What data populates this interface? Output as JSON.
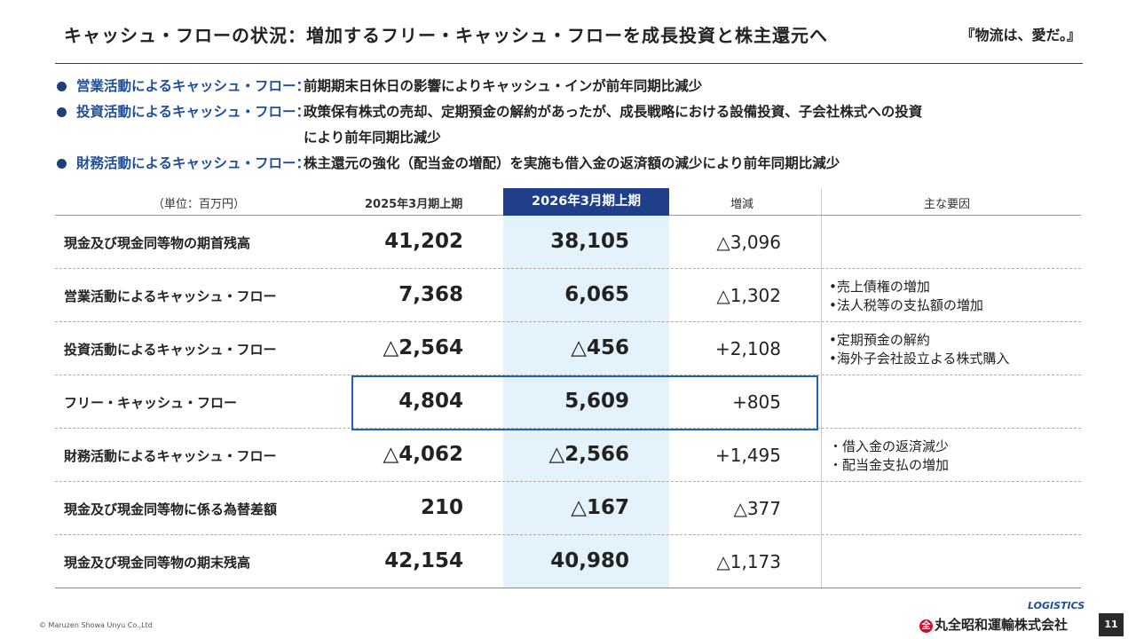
{
  "header": {
    "title": "キャッシュ・フローの状況：増加するフリー・キャッシュ・フローを成長投資と株主還元へ",
    "slogan": "『物流は、愛だ。』"
  },
  "bullets": [
    {
      "label": "営業活動によるキャッシュ・フロー：",
      "text": "前期期末日休日の影響によりキャッシュ・インが前年同期比減少",
      "text2": ""
    },
    {
      "label": "投資活動によるキャッシュ・フロー：",
      "text": "政策保有株式の売却、定期預金の解約があったが、成長戦略における設備投資、子会社株式への投資",
      "text2": "により前年同期比減少"
    },
    {
      "label": "財務活動によるキャッシュ・フロー：",
      "text": "株主還元の強化（配当金の増配）を実施も借入金の返済額の減少により前年同期比減少",
      "text2": ""
    }
  ],
  "table": {
    "headers": {
      "unit": "（単位：百万円）",
      "prev": "2025年3月期上期",
      "curr": "2026年3月期上期",
      "diff": "増減",
      "factors": "主な要因"
    },
    "rows": [
      {
        "name": "現金及び現金同等物の期首残高",
        "prev": "41,202",
        "curr": "38,105",
        "diff": "△3,096",
        "f1": "",
        "f2": ""
      },
      {
        "name": "営業活動によるキャッシュ・フロー",
        "prev": "7,368",
        "curr": "6,065",
        "diff": "△1,302",
        "f1": "•売上債権の増加",
        "f2": "•法人税等の支払額の増加"
      },
      {
        "name": "投資活動によるキャッシュ・フロー",
        "prev": "△2,564",
        "curr": "△456",
        "diff": "+2,108",
        "f1": "•定期預金の解約",
        "f2": "•海外子会社設立よる株式購入"
      },
      {
        "name": "フリー・キャッシュ・フロー",
        "prev": "4,804",
        "curr": "5,609",
        "diff": "+805",
        "f1": "",
        "f2": ""
      },
      {
        "name": "財務活動によるキャッシュ・フロー",
        "prev": "△4,062",
        "curr": "△2,566",
        "diff": "+1,495",
        "f1": "・借入金の返済減少",
        "f2": "・配当金支払の増加"
      },
      {
        "name": "現金及び現金同等物に係る為替差額",
        "prev": "210",
        "curr": "△167",
        "diff": "△377",
        "f1": "",
        "f2": ""
      },
      {
        "name": "現金及び現金同等物の期末残高",
        "prev": "42,154",
        "curr": "40,980",
        "diff": "△1,173",
        "f1": "",
        "f2": ""
      }
    ]
  },
  "footer": {
    "copyright": "© Maruzen Showa Unyu Co.,Ltd",
    "logo_text": "LOGISTICS",
    "company_mark": "全",
    "company": "丸全昭和運輸株式会社",
    "page": "11"
  },
  "colors": {
    "navy": "#1f3f8a",
    "label_blue": "#1f4e9a",
    "highlight": "#e3f2fb",
    "box_border": "#1f5fc0"
  }
}
